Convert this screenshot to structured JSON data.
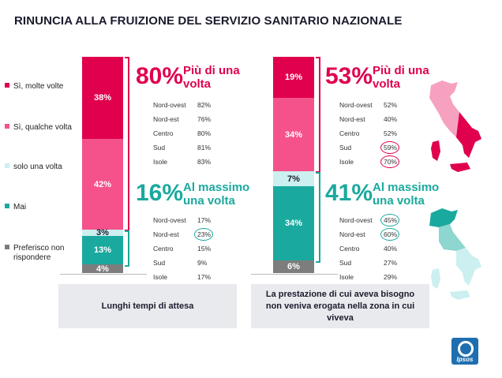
{
  "title": "RINUNCIA ALLA FRUIZIONE DEL SERVIZIO SANITARIO NAZIONALE",
  "colors": {
    "molte": "#e0004d",
    "qualche": "#f5528b",
    "una": "#cceff0",
    "mai": "#1aa99f",
    "preferisco": "#7d7d7d",
    "pink_text": "#e0004d",
    "teal_text": "#1aa99f",
    "caption_bg": "#e8eaed"
  },
  "legend": [
    {
      "key": "molte",
      "label": "Sì, molte volte"
    },
    {
      "key": "qualche",
      "label": "Sì, qualche volta"
    },
    {
      "key": "una",
      "label": "solo una volta"
    },
    {
      "key": "mai",
      "label": "Mai"
    },
    {
      "key": "preferisco",
      "label": "Preferisco non rispondere"
    }
  ],
  "chart_data": [
    {
      "type": "bar",
      "stacked": true,
      "category": "Lunghi tempi di attesa",
      "series": [
        {
          "name": "Sì, molte volte",
          "value": 38,
          "label": "38%"
        },
        {
          "name": "Sì, qualche volta",
          "value": 42,
          "label": "42%"
        },
        {
          "name": "solo una volta",
          "value": 3,
          "label": "3%"
        },
        {
          "name": "Mai",
          "value": 13,
          "label": "13%"
        },
        {
          "name": "Preferisco non rispondere",
          "value": 4,
          "label": "4%"
        }
      ],
      "summary_top": {
        "pct": "80%",
        "label": "Più di una volta"
      },
      "regions_top": [
        {
          "name": "Nord-ovest",
          "value": "82%",
          "circled": false
        },
        {
          "name": "Nord-est",
          "value": "76%",
          "circled": false
        },
        {
          "name": "Centro",
          "value": "80%",
          "circled": false
        },
        {
          "name": "Sud",
          "value": "81%",
          "circled": false
        },
        {
          "name": "Isole",
          "value": "83%",
          "circled": false
        }
      ],
      "summary_bottom": {
        "pct": "16%",
        "label": "Al massimo una volta"
      },
      "regions_bottom": [
        {
          "name": "Nord-ovest",
          "value": "17%",
          "circled": false
        },
        {
          "name": "Nord-est",
          "value": "23%",
          "circled": true
        },
        {
          "name": "Centro",
          "value": "15%",
          "circled": false
        },
        {
          "name": "Sud",
          "value": "9%",
          "circled": false
        },
        {
          "name": "Isole",
          "value": "17%",
          "circled": false
        }
      ]
    },
    {
      "type": "bar",
      "stacked": true,
      "category": "La prestazione di cui aveva bisogno non veniva erogata nella zona in cui viveva",
      "series": [
        {
          "name": "Sì, molte volte",
          "value": 19,
          "label": "19%"
        },
        {
          "name": "Sì, qualche volta",
          "value": 34,
          "label": "34%"
        },
        {
          "name": "solo una volta",
          "value": 7,
          "label": "7%"
        },
        {
          "name": "Mai",
          "value": 34,
          "label": "34%"
        },
        {
          "name": "Preferisco non rispondere",
          "value": 6,
          "label": "6%"
        }
      ],
      "summary_top": {
        "pct": "53%",
        "label": "Più di una volta"
      },
      "regions_top": [
        {
          "name": "Nord-ovest",
          "value": "52%",
          "circled": false
        },
        {
          "name": "Nord-est",
          "value": "40%",
          "circled": false
        },
        {
          "name": "Centro",
          "value": "52%",
          "circled": false
        },
        {
          "name": "Sud",
          "value": "59%",
          "circled": true
        },
        {
          "name": "Isole",
          "value": "70%",
          "circled": true
        }
      ],
      "summary_bottom": {
        "pct": "41%",
        "label": "Al massimo una volta"
      },
      "regions_bottom": [
        {
          "name": "Nord-ovest",
          "value": "45%",
          "circled": true
        },
        {
          "name": "Nord-est",
          "value": "60%",
          "circled": true
        },
        {
          "name": "Centro",
          "value": "40%",
          "circled": false
        },
        {
          "name": "Sud",
          "value": "27%",
          "circled": false
        },
        {
          "name": "Isole",
          "value": "29%",
          "circled": false
        }
      ]
    }
  ],
  "logo": {
    "text": "Ipsos"
  }
}
